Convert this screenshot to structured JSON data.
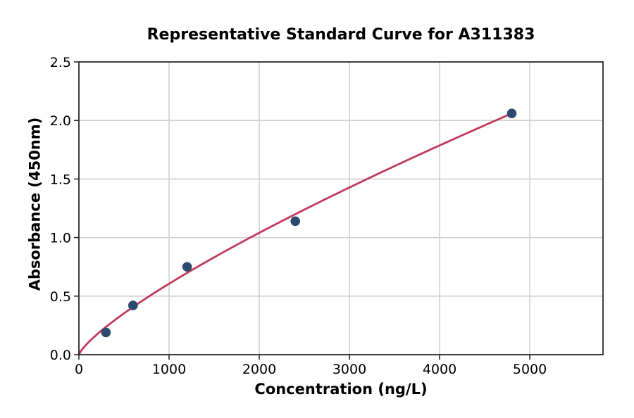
{
  "chart_data": {
    "type": "scatter",
    "title": "Representative Standard Curve for A311383",
    "xlabel": "Concentration (ng/L)",
    "ylabel": "Absorbance (450nm)",
    "xlim": [
      0,
      5812
    ],
    "ylim": [
      0,
      2.5
    ],
    "x_ticks": [
      0,
      1000,
      2000,
      3000,
      4000,
      5000
    ],
    "x_tick_labels": [
      "0",
      "1000",
      "2000",
      "3000",
      "4000",
      "5000"
    ],
    "y_ticks": [
      0,
      0.5,
      1,
      1.5,
      2,
      2.5
    ],
    "y_tick_labels": [
      "0.0",
      "0.5",
      "1.0",
      "1.5",
      "2.0",
      "2.5"
    ],
    "grid": true,
    "legend": null,
    "points": [
      {
        "x": 300,
        "y": 0.19
      },
      {
        "x": 600,
        "y": 0.42
      },
      {
        "x": 1200,
        "y": 0.75
      },
      {
        "x": 2400,
        "y": 1.14
      },
      {
        "x": 4800,
        "y": 2.06
      }
    ],
    "fit_curve": {
      "type": "power",
      "a": 0.00277,
      "b": 0.78,
      "x_start": 0,
      "x_end": 4800
    },
    "colors": {
      "point": "#2b4a6d",
      "curve": "#c03a5c",
      "grid": "#d0d0d0",
      "spine": "#2a2a2a",
      "tick": "#2a2a2a",
      "text": "#000000",
      "background": "#ffffff"
    }
  }
}
